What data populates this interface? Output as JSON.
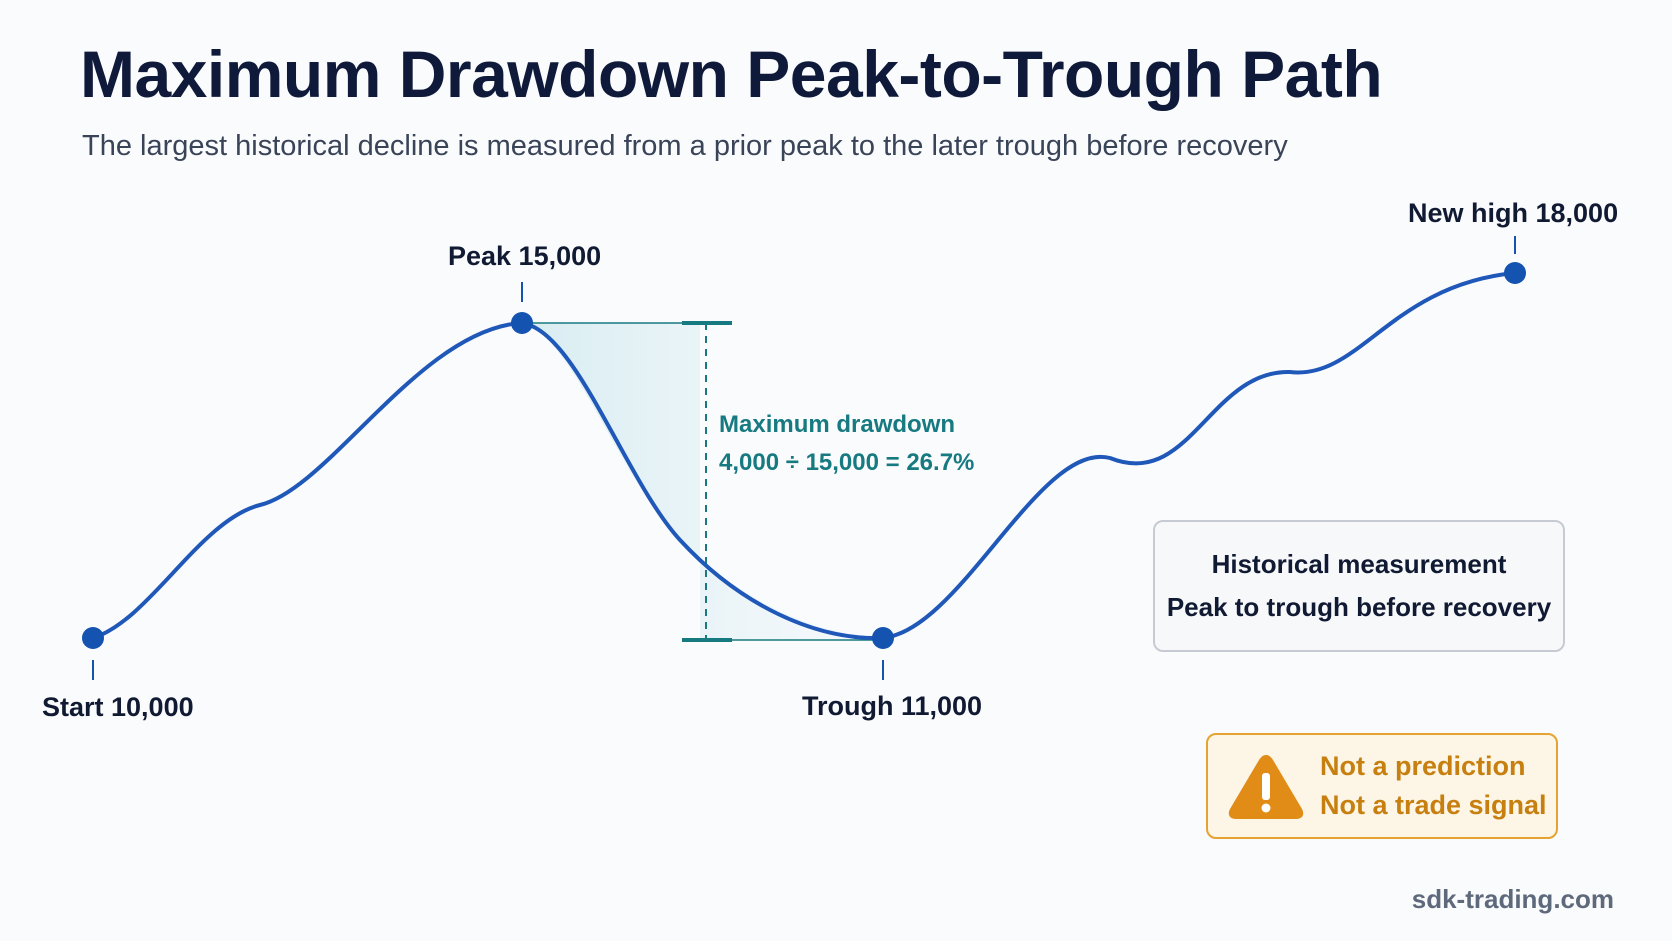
{
  "title": "Maximum Drawdown Peak-to-Trough Path",
  "subtitle": "The largest historical decline is measured from a prior peak to the later trough before recovery",
  "colors": {
    "line": "#1f58b8",
    "point": "#1453b0",
    "drawdown": "#177a80",
    "warning": "#c7800f"
  },
  "chart_data": {
    "type": "line",
    "title": "Maximum Drawdown Peak-to-Trough Path",
    "points": [
      {
        "label": "Start 10,000",
        "value": 10000
      },
      {
        "label": "Peak 15,000",
        "value": 15000
      },
      {
        "label": "Trough 11,000",
        "value": 11000
      },
      {
        "label": "New high 18,000",
        "value": 18000
      }
    ],
    "drawdown": {
      "label": "Maximum drawdown",
      "formula": "4,000 ÷ 15,000 = 26.7%",
      "from": 15000,
      "to": 11000,
      "percent": 26.7
    },
    "grid": false,
    "legend": "none"
  },
  "info_box": {
    "line1": "Historical measurement",
    "line2": "Peak to trough before recovery"
  },
  "warning": {
    "icon": "warning-triangle-icon",
    "line1": "Not a prediction",
    "line2": "Not a trade signal"
  },
  "footer": "sdk-trading.com"
}
